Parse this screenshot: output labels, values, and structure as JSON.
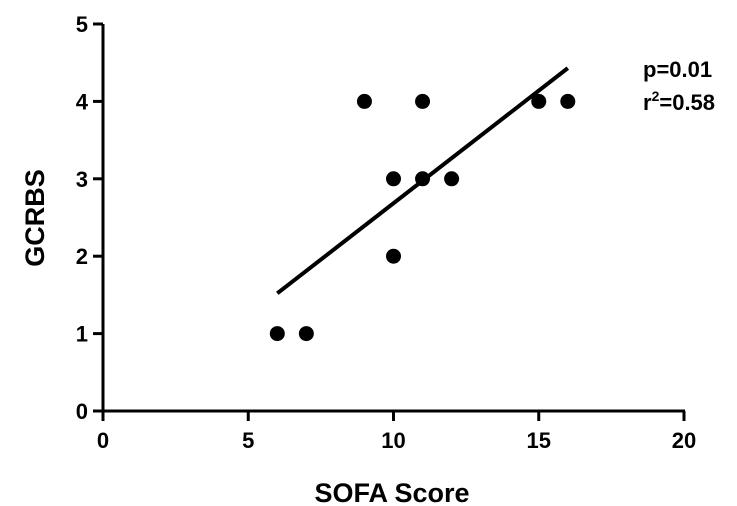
{
  "chart_data": {
    "type": "scatter",
    "xlabel": "SOFA Score",
    "ylabel": "GCRBS",
    "xlim": [
      0,
      20
    ],
    "ylim": [
      0,
      5
    ],
    "xticks": [
      "0",
      "5",
      "10",
      "15",
      "20"
    ],
    "yticks": [
      "0",
      "1",
      "2",
      "3",
      "4",
      "5"
    ],
    "points": [
      {
        "x": 6,
        "y": 1
      },
      {
        "x": 7,
        "y": 1
      },
      {
        "x": 9,
        "y": 4
      },
      {
        "x": 10,
        "y": 3
      },
      {
        "x": 10,
        "y": 2
      },
      {
        "x": 11,
        "y": 4
      },
      {
        "x": 11,
        "y": 3
      },
      {
        "x": 12,
        "y": 3
      },
      {
        "x": 15,
        "y": 4
      },
      {
        "x": 16,
        "y": 4
      }
    ],
    "regression_line": {
      "x": [
        6,
        16
      ],
      "y": [
        1.52,
        4.43
      ]
    },
    "annotations": {
      "p_text": "p=0.01",
      "r2_prefix": "r",
      "r2_sup": "2",
      "r2_value": "=0.58"
    },
    "colors": {
      "points": "#000000",
      "line": "#000000",
      "axes": "#000000"
    }
  }
}
